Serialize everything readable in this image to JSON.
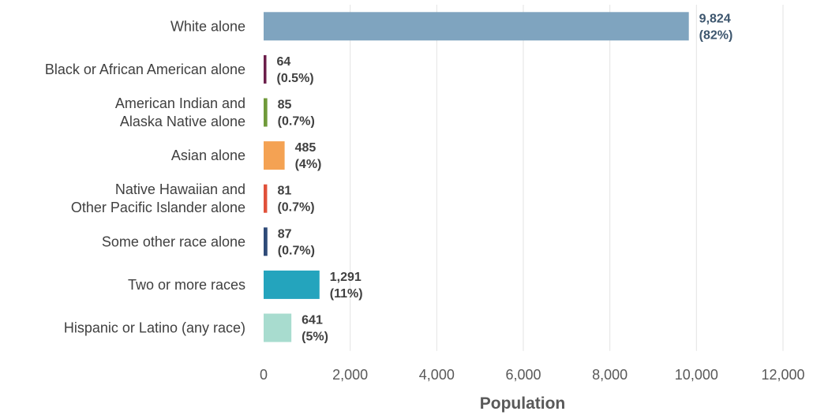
{
  "chart_data": {
    "type": "bar",
    "orientation": "horizontal",
    "xlabel": "Population",
    "ylabel": "",
    "title": "",
    "xlim": [
      0,
      12000
    ],
    "x_ticks": [
      0,
      2000,
      4000,
      6000,
      8000,
      10000,
      12000
    ],
    "x_tick_labels": [
      "0",
      "2,000",
      "4,000",
      "6,000",
      "8,000",
      "10,000",
      "12,000"
    ],
    "grid": "vertical",
    "categories": [
      [
        "White alone"
      ],
      [
        "Black or African American alone"
      ],
      [
        "American Indian and",
        "Alaska Native alone"
      ],
      [
        "Asian alone"
      ],
      [
        "Native Hawaiian and",
        "Other Pacific Islander alone"
      ],
      [
        "Some other race alone"
      ],
      [
        "Two or more races"
      ],
      [
        "Hispanic or Latino (any race)"
      ]
    ],
    "values": [
      9824,
      64,
      85,
      485,
      81,
      87,
      1291,
      641
    ],
    "value_labels": [
      "9,824",
      "64",
      "85",
      "485",
      "81",
      "87",
      "1,291",
      "641"
    ],
    "percent_labels": [
      "(82%)",
      "(0.5%)",
      "(0.7%)",
      "(4%)",
      "(0.7%)",
      "(0.7%)",
      "(11%)",
      "(5%)"
    ],
    "colors": [
      "#7fa4bf",
      "#6b1e4a",
      "#6f9a3a",
      "#f4a253",
      "#e0513a",
      "#2e4a78",
      "#24a4bd",
      "#a8dccf"
    ],
    "value_label_colors": [
      "#3d566e",
      "#404040",
      "#404040",
      "#404040",
      "#404040",
      "#404040",
      "#404040",
      "#404040"
    ]
  }
}
